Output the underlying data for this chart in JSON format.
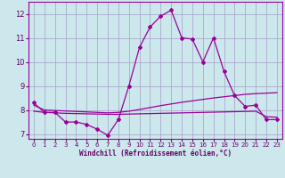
{
  "background_color": "#cce8ec",
  "grid_color": "#aaaacc",
  "line_color": "#990099",
  "text_color": "#660066",
  "xlabel": "Windchill (Refroidissement éolien,°C)",
  "xlim": [
    -0.5,
    23.5
  ],
  "ylim": [
    6.8,
    12.5
  ],
  "yticks": [
    7,
    8,
    9,
    10,
    11,
    12
  ],
  "xticks": [
    0,
    1,
    2,
    3,
    4,
    5,
    6,
    7,
    8,
    9,
    10,
    11,
    12,
    13,
    14,
    15,
    16,
    17,
    18,
    19,
    20,
    21,
    22,
    23
  ],
  "series1_x": [
    0,
    1,
    2,
    3,
    4,
    5,
    6,
    7,
    8,
    9,
    10,
    11,
    12,
    13,
    14,
    15,
    16,
    17,
    18,
    19,
    20,
    21,
    22,
    23
  ],
  "series1_y": [
    8.3,
    7.9,
    7.9,
    7.5,
    7.5,
    7.4,
    7.2,
    6.95,
    7.6,
    9.0,
    10.6,
    11.45,
    11.9,
    12.15,
    11.0,
    10.95,
    10.0,
    11.0,
    9.6,
    8.6,
    8.15,
    8.2,
    7.6,
    7.6
  ],
  "series2_x": [
    0,
    1,
    2,
    3,
    4,
    5,
    6,
    7,
    8,
    9,
    10,
    11,
    12,
    13,
    14,
    15,
    16,
    17,
    18,
    19,
    20,
    21,
    22,
    23
  ],
  "series2_y": [
    8.2,
    8.0,
    7.98,
    7.96,
    7.94,
    7.92,
    7.9,
    7.88,
    7.9,
    7.95,
    8.02,
    8.1,
    8.18,
    8.25,
    8.32,
    8.38,
    8.44,
    8.5,
    8.55,
    8.6,
    8.65,
    8.68,
    8.7,
    8.72
  ],
  "series3_x": [
    0,
    1,
    2,
    3,
    4,
    5,
    6,
    7,
    8,
    9,
    10,
    11,
    12,
    13,
    14,
    15,
    16,
    17,
    18,
    19,
    20,
    21,
    22,
    23
  ],
  "series3_y": [
    7.95,
    7.9,
    7.88,
    7.86,
    7.85,
    7.84,
    7.83,
    7.82,
    7.82,
    7.83,
    7.84,
    7.85,
    7.86,
    7.87,
    7.88,
    7.89,
    7.9,
    7.91,
    7.92,
    7.93,
    7.94,
    7.95,
    7.72,
    7.7
  ]
}
